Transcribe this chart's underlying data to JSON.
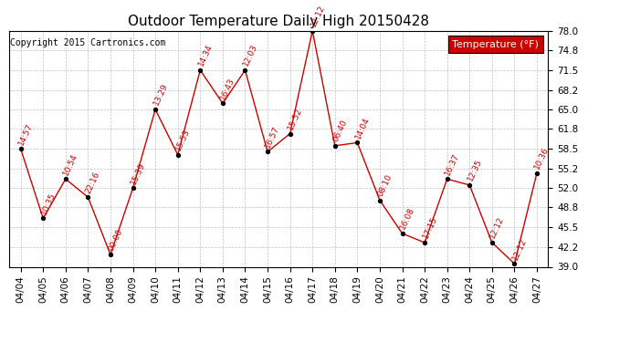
{
  "title": "Outdoor Temperature Daily High 20150428",
  "copyright": "Copyright 2015 Cartronics.com",
  "legend_label": "Temperature (°F)",
  "dates": [
    "04/04",
    "04/05",
    "04/06",
    "04/07",
    "04/08",
    "04/09",
    "04/10",
    "04/11",
    "04/12",
    "04/13",
    "04/14",
    "04/15",
    "04/16",
    "04/17",
    "04/18",
    "04/19",
    "04/20",
    "04/21",
    "04/22",
    "04/23",
    "04/24",
    "04/25",
    "04/26",
    "04/27"
  ],
  "temps": [
    58.5,
    47.0,
    53.5,
    50.5,
    41.0,
    52.0,
    65.0,
    57.5,
    71.5,
    66.0,
    71.5,
    58.0,
    61.0,
    78.0,
    59.0,
    59.5,
    50.0,
    44.5,
    43.0,
    53.5,
    52.5,
    43.0,
    39.5,
    54.5
  ],
  "times": [
    "14:57",
    "10:35",
    "10:54",
    "22:16",
    "00:00",
    "15:39",
    "13:29",
    "15:53",
    "14:34",
    "16:43",
    "12:03",
    "16:57",
    "15:52",
    "12:12",
    "06:40",
    "14:04",
    "08:10",
    "16:08",
    "17:15",
    "16:37",
    "12:35",
    "12:12",
    "12:12",
    "10:36"
  ],
  "ylim": [
    39.0,
    78.0
  ],
  "yticks": [
    39.0,
    42.2,
    45.5,
    48.8,
    52.0,
    55.2,
    58.5,
    61.8,
    65.0,
    68.2,
    71.5,
    74.8,
    78.0
  ],
  "line_color": "#cc0000",
  "marker_color": "#000000",
  "bg_color": "#ffffff",
  "grid_color": "#c0c0c0",
  "title_fontsize": 11,
  "copyright_fontsize": 7,
  "label_fontsize": 6.5,
  "tick_fontsize": 7.5,
  "legend_bg": "#cc0000",
  "legend_text_color": "#ffffff",
  "legend_fontsize": 8
}
